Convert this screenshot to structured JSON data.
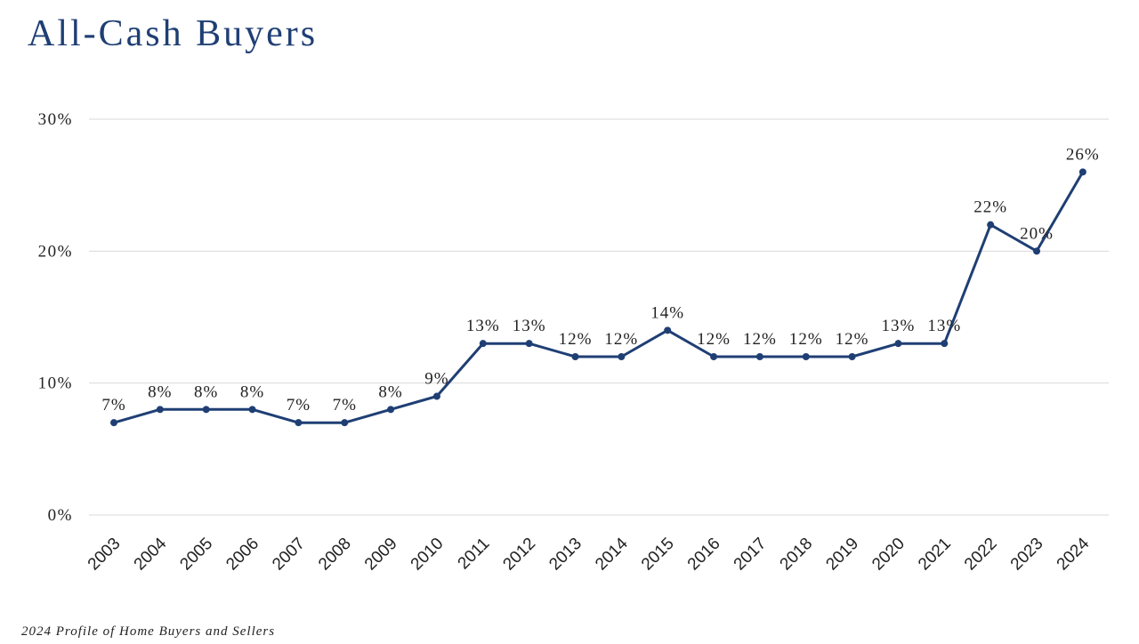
{
  "title": "All-Cash Buyers",
  "footer": "2024 Profile of Home Buyers and Sellers",
  "chart_data": {
    "type": "line",
    "title": "All-Cash Buyers",
    "xlabel": "",
    "ylabel": "",
    "categories": [
      "2003",
      "2004",
      "2005",
      "2006",
      "2007",
      "2008",
      "2009",
      "2010",
      "2011",
      "2012",
      "2013",
      "2014",
      "2015",
      "2016",
      "2017",
      "2018",
      "2019",
      "2020",
      "2021",
      "2022",
      "2023",
      "2024"
    ],
    "series": [
      {
        "name": "All-Cash Buyers",
        "values": [
          7,
          8,
          8,
          8,
          7,
          7,
          8,
          9,
          13,
          13,
          12,
          12,
          14,
          12,
          12,
          12,
          12,
          13,
          13,
          22,
          20,
          26
        ],
        "labels": [
          "7%",
          "8%",
          "8%",
          "8%",
          "7%",
          "7%",
          "8%",
          "9%",
          "13%",
          "13%",
          "12%",
          "12%",
          "14%",
          "12%",
          "12%",
          "12%",
          "12%",
          "13%",
          "13%",
          "22%",
          "20%",
          "26%"
        ]
      }
    ],
    "ylim": [
      0,
      30
    ],
    "yticks": [
      0,
      10,
      20,
      30
    ],
    "ytick_labels": [
      "0%",
      "10%",
      "20%",
      "30%"
    ],
    "grid": true,
    "line_color": "#1f3f74",
    "grid_color": "#d9d9d9"
  }
}
